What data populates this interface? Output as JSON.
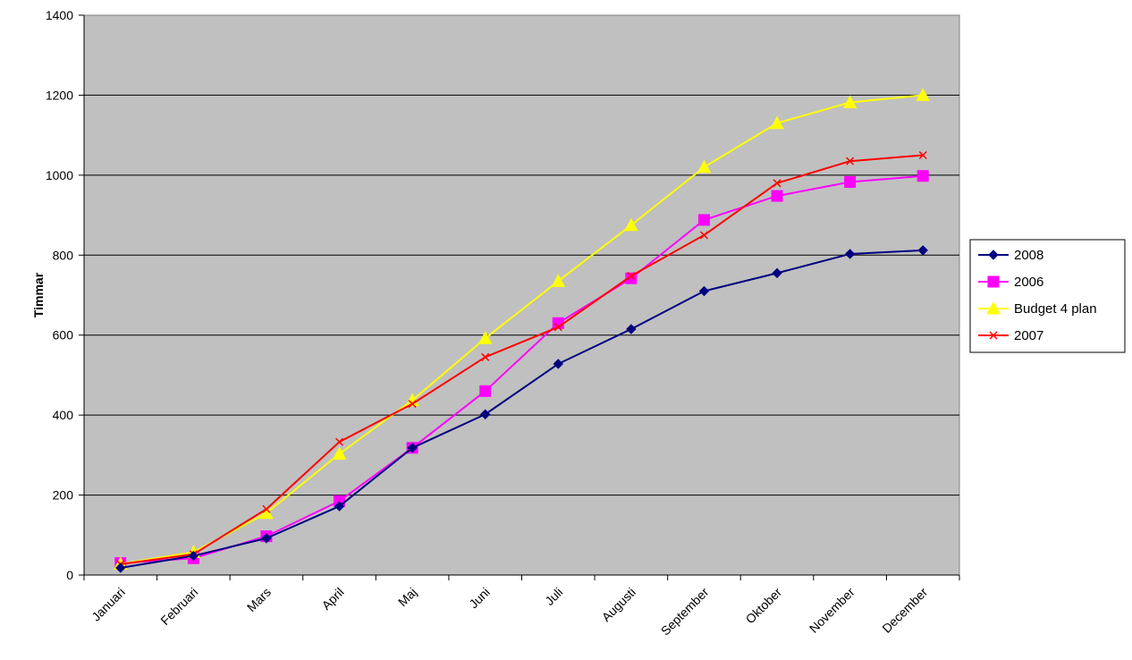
{
  "chart_data": {
    "type": "line",
    "title": "",
    "xlabel": "",
    "ylabel": "Timmar",
    "categories": [
      "Januari",
      "Februari",
      "Mars",
      "April",
      "Maj",
      "Juni",
      "Juli",
      "Augusti",
      "September",
      "Oktober",
      "November",
      "December"
    ],
    "ylim": [
      0,
      1400
    ],
    "yticks": [
      0,
      200,
      400,
      600,
      800,
      1000,
      1200,
      1400
    ],
    "grid": "horizontal major gridlines",
    "plot_background": "#c0c0c0",
    "legend_position": "right",
    "series": [
      {
        "name": "2008",
        "color": "#000080",
        "marker": "diamond",
        "values": [
          18,
          48,
          92,
          172,
          318,
          402,
          528,
          615,
          710,
          755,
          803,
          812
        ]
      },
      {
        "name": "2006",
        "color": "#ff00ff",
        "marker": "square",
        "values": [
          30,
          42,
          97,
          185,
          318,
          460,
          630,
          742,
          888,
          948,
          983,
          998
        ]
      },
      {
        "name": "Budget 4 plan",
        "color": "#ffff00",
        "marker": "triangle",
        "values": [
          28,
          57,
          155,
          303,
          437,
          592,
          735,
          875,
          1020,
          1130,
          1182,
          1200
        ]
      },
      {
        "name": "2007",
        "color": "#ff0000",
        "marker": "x",
        "values": [
          27,
          52,
          165,
          333,
          428,
          545,
          620,
          748,
          850,
          980,
          1035,
          1050
        ]
      }
    ]
  }
}
